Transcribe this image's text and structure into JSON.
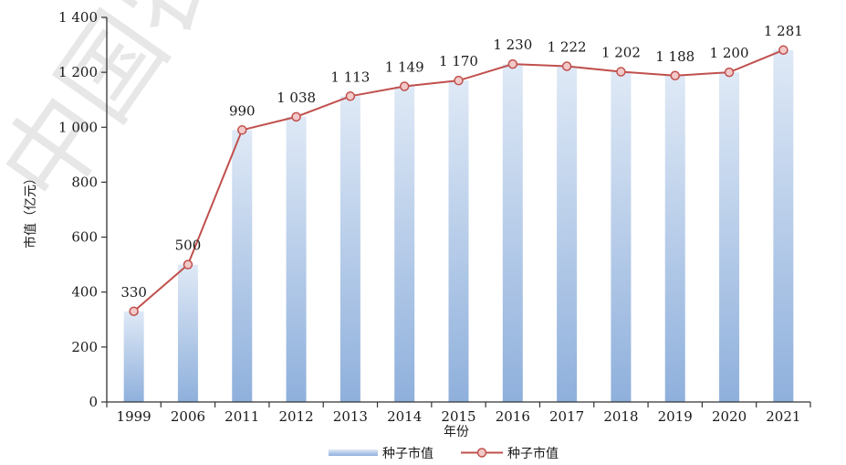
{
  "watermark": "中国农",
  "chart_data": {
    "type": "bar",
    "categories": [
      "1999",
      "2006",
      "2011",
      "2012",
      "2013",
      "2014",
      "2015",
      "2016",
      "2017",
      "2018",
      "2019",
      "2020",
      "2021"
    ],
    "series": [
      {
        "name": "种子市值",
        "kind": "bar",
        "values": [
          330,
          500,
          990,
          1038,
          1113,
          1149,
          1170,
          1230,
          1222,
          1202,
          1188,
          1200,
          1281
        ]
      },
      {
        "name": "种子市值",
        "kind": "line",
        "values": [
          330,
          500,
          990,
          1038,
          1113,
          1149,
          1170,
          1230,
          1222,
          1202,
          1188,
          1200,
          1281
        ]
      }
    ],
    "data_labels": [
      "330",
      "500",
      "990",
      "1 038",
      "1 113",
      "1 149",
      "1 170",
      "1 230",
      "1 222",
      "1 202",
      "1 188",
      "1 200",
      "1 281"
    ],
    "ytick_labels": [
      "0",
      "200",
      "400",
      "600",
      "800",
      "1 000",
      "1 200",
      "1 400"
    ],
    "yticks": [
      0,
      200,
      400,
      600,
      800,
      1000,
      1200,
      1400
    ],
    "ylim": [
      0,
      1400
    ],
    "xlabel": "年份",
    "ylabel": "市值（亿元）",
    "legend_position": "bottom",
    "grid": false,
    "colors": {
      "bar_top": "#dfe9f6",
      "bar_bottom": "#8fb0dc",
      "line": "#c0504d",
      "marker_fill": "#f2c9c9",
      "axis": "#333333"
    }
  }
}
